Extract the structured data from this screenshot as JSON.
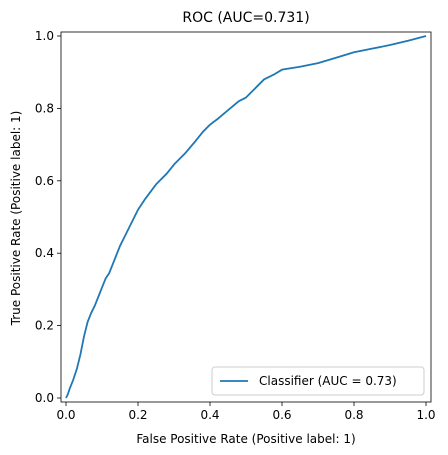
{
  "chart_data": {
    "type": "line",
    "title": "ROC (AUC=0.731)",
    "xlabel": "False Positive Rate (Positive label: 1)",
    "ylabel": "True Positive Rate (Positive label: 1)",
    "xlim": [
      0,
      1
    ],
    "ylim": [
      0,
      1
    ],
    "xticks": [
      "0.0",
      "0.2",
      "0.4",
      "0.6",
      "0.8",
      "1.0"
    ],
    "yticks": [
      "0.0",
      "0.2",
      "0.4",
      "0.6",
      "0.8",
      "1.0"
    ],
    "grid": false,
    "legend_position": "bottom-right",
    "series": [
      {
        "name": "Classifier (AUC = 0.73)",
        "color": "#1f77b4",
        "x": [
          0.0,
          0.005,
          0.01,
          0.02,
          0.03,
          0.04,
          0.05,
          0.06,
          0.07,
          0.08,
          0.09,
          0.1,
          0.11,
          0.12,
          0.13,
          0.14,
          0.15,
          0.16,
          0.18,
          0.2,
          0.22,
          0.25,
          0.28,
          0.3,
          0.33,
          0.36,
          0.38,
          0.4,
          0.42,
          0.45,
          0.48,
          0.5,
          0.53,
          0.55,
          0.58,
          0.6,
          0.65,
          0.7,
          0.75,
          0.8,
          0.85,
          0.9,
          0.95,
          1.0
        ],
        "y": [
          0.0,
          0.01,
          0.025,
          0.05,
          0.08,
          0.12,
          0.17,
          0.21,
          0.235,
          0.255,
          0.28,
          0.305,
          0.33,
          0.345,
          0.37,
          0.395,
          0.42,
          0.44,
          0.48,
          0.52,
          0.55,
          0.59,
          0.62,
          0.645,
          0.675,
          0.71,
          0.735,
          0.755,
          0.77,
          0.795,
          0.82,
          0.83,
          0.86,
          0.88,
          0.895,
          0.907,
          0.915,
          0.925,
          0.94,
          0.955,
          0.965,
          0.975,
          0.987,
          1.0
        ]
      }
    ]
  }
}
